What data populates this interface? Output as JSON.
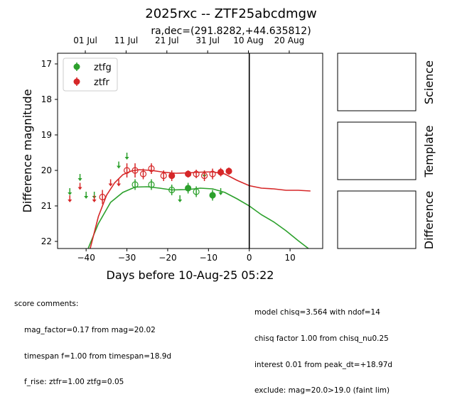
{
  "title": "2025rxc -- ZTF25abcdmgw",
  "subtitle": "ra,dec=(291.8282,+44.635812)",
  "chart_data": {
    "type": "scatter",
    "xlabel": "Days before 10-Aug-25 05:22",
    "ylabel": "Difference magnitude",
    "xlim": [
      -47,
      18
    ],
    "ylim": [
      22.2,
      16.7
    ],
    "y_inverted": true,
    "x_ticks": [
      -40,
      -30,
      -20,
      -10,
      0,
      10
    ],
    "y_ticks": [
      17,
      18,
      19,
      20,
      21,
      22
    ],
    "top_ticks": [
      {
        "x": -40.2,
        "label": "01 Jul"
      },
      {
        "x": -30.2,
        "label": "11 Jul"
      },
      {
        "x": -20.2,
        "label": "21 Jul"
      },
      {
        "x": -10.2,
        "label": "31 Jul"
      },
      {
        "x": -0.2,
        "label": "10 Aug"
      },
      {
        "x": 9.8,
        "label": "20 Aug"
      }
    ],
    "vline_x": 0,
    "legend": {
      "position": "top-left",
      "entries": [
        {
          "name": "ztfg",
          "color": "#2ca02c"
        },
        {
          "name": "ztfr",
          "color": "#d62728"
        }
      ]
    },
    "series": [
      {
        "name": "ztfg",
        "color": "#2ca02c",
        "detections": [
          {
            "x": -28,
            "y": 20.4,
            "err": 0.15,
            "filled": false
          },
          {
            "x": -24,
            "y": 20.4,
            "err": 0.15,
            "filled": false
          },
          {
            "x": -19,
            "y": 20.55,
            "err": 0.15,
            "filled": false
          },
          {
            "x": -15,
            "y": 20.5,
            "err": 0.15,
            "filled": true
          },
          {
            "x": -13,
            "y": 20.6,
            "err": 0.15,
            "filled": false
          },
          {
            "x": -9,
            "y": 20.7,
            "err": 0.15,
            "filled": true
          }
        ],
        "upper_limits": [
          {
            "x": -44,
            "y": 20.6
          },
          {
            "x": -41.5,
            "y": 20.2
          },
          {
            "x": -40,
            "y": 20.7
          },
          {
            "x": -38,
            "y": 20.7
          },
          {
            "x": -32,
            "y": 19.85
          },
          {
            "x": -30,
            "y": 19.6
          },
          {
            "x": -17,
            "y": 20.8
          },
          {
            "x": -11,
            "y": 20.1
          },
          {
            "x": -7,
            "y": 20.6
          }
        ],
        "model_curve": [
          [
            -39.5,
            22.2
          ],
          [
            -37,
            21.5
          ],
          [
            -34,
            20.9
          ],
          [
            -31,
            20.62
          ],
          [
            -28,
            20.47
          ],
          [
            -25,
            20.46
          ],
          [
            -22,
            20.5
          ],
          [
            -19,
            20.55
          ],
          [
            -15,
            20.54
          ],
          [
            -12,
            20.5
          ],
          [
            -9,
            20.52
          ],
          [
            -6,
            20.62
          ],
          [
            -3,
            20.8
          ],
          [
            0,
            21.0
          ],
          [
            3,
            21.25
          ],
          [
            6,
            21.45
          ],
          [
            9,
            21.7
          ],
          [
            12,
            21.98
          ],
          [
            14.5,
            22.2
          ]
        ]
      },
      {
        "name": "ztfr",
        "color": "#d62728",
        "detections": [
          {
            "x": -36,
            "y": 20.75,
            "err": 0.2,
            "filled": false
          },
          {
            "x": -30,
            "y": 20.0,
            "err": 0.2,
            "filled": false
          },
          {
            "x": -28,
            "y": 20.0,
            "err": 0.2,
            "filled": false
          },
          {
            "x": -26,
            "y": 20.1,
            "err": 0.15,
            "filled": false
          },
          {
            "x": -24,
            "y": 19.95,
            "err": 0.15,
            "filled": false
          },
          {
            "x": -21,
            "y": 20.15,
            "err": 0.15,
            "filled": false
          },
          {
            "x": -19,
            "y": 20.15,
            "err": 0.15,
            "filled": true
          },
          {
            "x": -15,
            "y": 20.1,
            "err": 0.1,
            "filled": true
          },
          {
            "x": -13,
            "y": 20.1,
            "err": 0.12,
            "filled": false
          },
          {
            "x": -11,
            "y": 20.15,
            "err": 0.15,
            "filled": false
          },
          {
            "x": -9,
            "y": 20.1,
            "err": 0.15,
            "filled": false
          },
          {
            "x": -7,
            "y": 20.05,
            "err": 0.12,
            "filled": true
          },
          {
            "x": -5,
            "y": 20.02,
            "err": 0.1,
            "filled": true
          }
        ],
        "upper_limits": [
          {
            "x": -44,
            "y": 20.8
          },
          {
            "x": -41.5,
            "y": 20.45
          },
          {
            "x": -38,
            "y": 20.8
          },
          {
            "x": -34,
            "y": 20.35
          },
          {
            "x": -32,
            "y": 20.35
          }
        ],
        "model_curve": [
          [
            -39,
            22.2
          ],
          [
            -37,
            21.3
          ],
          [
            -35,
            20.7
          ],
          [
            -33,
            20.35
          ],
          [
            -31,
            20.12
          ],
          [
            -29,
            20.02
          ],
          [
            -27,
            19.98
          ],
          [
            -24,
            20.0
          ],
          [
            -21,
            20.05
          ],
          [
            -18,
            20.08
          ],
          [
            -15,
            20.07
          ],
          [
            -12,
            20.05
          ],
          [
            -9,
            20.04
          ],
          [
            -6,
            20.1
          ],
          [
            -3,
            20.28
          ],
          [
            0,
            20.43
          ],
          [
            3,
            20.5
          ],
          [
            6,
            20.52
          ],
          [
            9,
            20.56
          ],
          [
            12,
            20.56
          ],
          [
            15,
            20.58
          ]
        ]
      }
    ]
  },
  "side_panels": [
    {
      "label": "Science"
    },
    {
      "label": "Template"
    },
    {
      "label": "Difference"
    }
  ],
  "comments_left": {
    "header": "score comments:",
    "lines": [
      "mag_factor=0.17 from mag=20.02",
      "timespan f=1.00 from timespan=18.9d",
      "f_rise: ztfr=1.00 ztfg=0.05"
    ]
  },
  "comments_right": {
    "lines": [
      "model chisq=3.564 with ndof=14",
      "chisq factor 1.00 from chisq_nu0.25",
      "interest 0.01 from peak_dt=+18.97d",
      "exclude: mag=20.0>19.0 (faint lim)"
    ]
  }
}
